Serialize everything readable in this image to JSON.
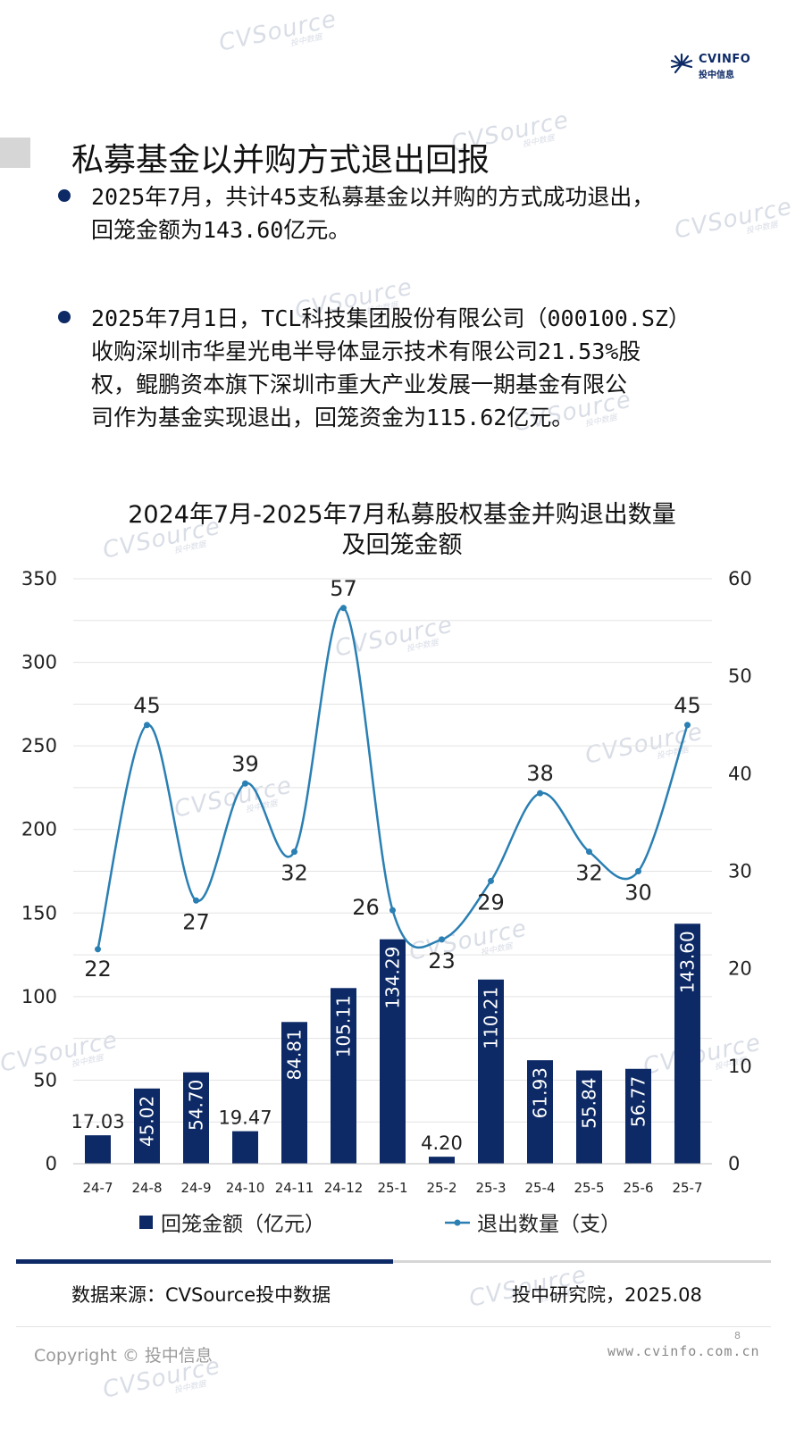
{
  "logo": {
    "brand": "CVINFO",
    "brand_cn": "投中信息"
  },
  "watermark": {
    "text": "CVSource",
    "sub": "投中数据"
  },
  "page_title": "私募基金以并购方式退出回报",
  "bullets": [
    {
      "lines": [
        "2025年7月，共计45支私募基金以并购的方式成功退出，",
        "回笼金额为143.60亿元。"
      ]
    },
    {
      "lines": [
        "2025年7月1日，TCL科技集团股份有限公司（000100.SZ）",
        "收购深圳市华星光电半导体显示技术有限公司21.53%股",
        "权，鲲鹏资本旗下深圳市重大产业发展一期基金有限公",
        "司作为基金实现退出，回笼资金为115.62亿元。"
      ]
    }
  ],
  "chart_title": [
    "2024年7月-2025年7月私募股权基金并购退出数量",
    "及回笼金额"
  ],
  "chart_data": {
    "type": "bar",
    "categories": [
      "24-7",
      "24-8",
      "24-9",
      "24-10",
      "24-11",
      "24-12",
      "25-1",
      "25-2",
      "25-3",
      "25-4",
      "25-5",
      "25-6",
      "25-7"
    ],
    "series": [
      {
        "name": "回笼金额（亿元）",
        "type": "bar",
        "axis": "left",
        "values": [
          17.03,
          45.02,
          54.7,
          19.47,
          84.81,
          105.11,
          134.29,
          4.2,
          110.21,
          61.93,
          55.84,
          56.77,
          143.6
        ],
        "labels": [
          "17.03",
          "45.02",
          "54.70",
          "19.47",
          "84.81",
          "105.11",
          "134.29",
          "4.20",
          "110.21",
          "61.93",
          "55.84",
          "56.77",
          "143.60"
        ]
      },
      {
        "name": "退出数量（支）",
        "type": "line",
        "axis": "right",
        "values": [
          22,
          45,
          27,
          39,
          32,
          57,
          26,
          23,
          29,
          38,
          32,
          30,
          45
        ]
      }
    ],
    "y_left": {
      "min": 0,
      "max": 350,
      "ticks": [
        0,
        50,
        100,
        150,
        200,
        250,
        300,
        350
      ]
    },
    "y_right": {
      "min": 0,
      "max": 60,
      "ticks": [
        0,
        10,
        20,
        30,
        40,
        50,
        60
      ]
    },
    "grid": true,
    "legend_position": "bottom",
    "colors": {
      "bar": "#0d2a66",
      "line": "#2a7fb3",
      "grid": "#e3e3e3"
    }
  },
  "footer": {
    "source": "数据来源：CVSource投中数据",
    "institute": "投中研究院，2025.08",
    "copyright": "Copyright © 投中信息",
    "site": "www.cvinfo.com.cn",
    "page": "8"
  }
}
